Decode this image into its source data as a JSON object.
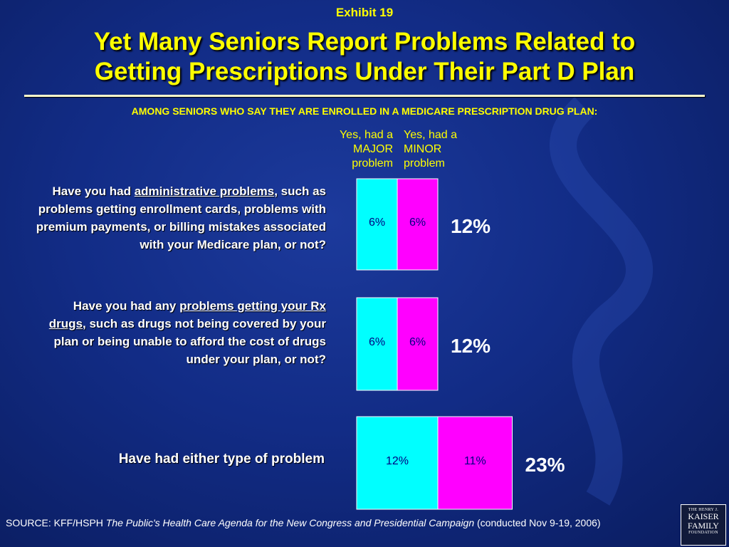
{
  "exhibit": "Exhibit 19",
  "title_line1": "Yet Many Seniors Report Problems Related to",
  "title_line2": "Getting Prescriptions Under Their Part D Plan",
  "subtitle": "AMONG SENIORS WHO SAY THEY ARE ENROLLED IN A MEDICARE PRESCRIPTION DRUG PLAN:",
  "legend": {
    "major": [
      "Yes, had a",
      "MAJOR",
      "problem"
    ],
    "minor": [
      "Yes, had a",
      "MINOR",
      "problem"
    ]
  },
  "questions": [
    {
      "pre": "Have you had ",
      "emph": "administrative problems",
      "post": ", such as problems getting enrollment cards, problems with premium payments, or billing mistakes associated with your Medicare plan, or not?"
    },
    {
      "pre": "Have you had any ",
      "emph": "problems getting your Rx drugs",
      "post": ", such as drugs not being covered by your plan or being unable to afford the cost of drugs under your plan, or not?"
    },
    {
      "pre": "Have had either type of problem",
      "emph": "",
      "post": ""
    }
  ],
  "chart_data": {
    "type": "bar",
    "orientation": "horizontal",
    "stacked": true,
    "categories": [
      "administrative problems",
      "problems getting your Rx drugs",
      "either type of problem"
    ],
    "series": [
      {
        "name": "Yes, had a MAJOR problem",
        "values": [
          6,
          6,
          12
        ],
        "labels": [
          "6%",
          "6%",
          "12%"
        ],
        "color": "#00ffff"
      },
      {
        "name": "Yes, had a MINOR problem",
        "values": [
          6,
          6,
          11
        ],
        "labels": [
          "6%",
          "6%",
          "11%"
        ],
        "color": "#ff00ff"
      }
    ],
    "totals": [
      "12%",
      "12%",
      "23%"
    ],
    "total_color": "#ffffff"
  },
  "source": {
    "prefix": "SOURCE: KFF/HSPH ",
    "italic": "The Public's Health Care Agenda for the New Congress and Presidential Campaign",
    "suffix": " (conducted Nov 9-19, 2006)"
  },
  "logo": {
    "line1": "THE HENRY J.",
    "line2a": "KAISER",
    "line2b": "FAMILY",
    "line3": "FOUNDATION"
  },
  "colors": {
    "background": "#122c86",
    "accent_text": "#ffff00",
    "major": "#00ffff",
    "minor": "#ff00ff"
  }
}
